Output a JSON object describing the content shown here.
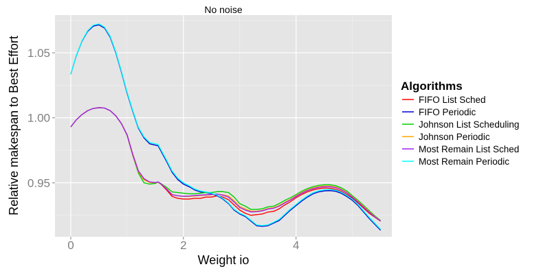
{
  "chart_data": {
    "type": "line",
    "title": "No noise",
    "xlabel": "Weight io",
    "ylabel": "Relative makespan to Best Effort",
    "xlim": [
      -0.28,
      5.7
    ],
    "ylim": [
      0.9085,
      1.079
    ],
    "x_ticks": [
      0,
      2,
      4
    ],
    "x_tick_labels": [
      "0",
      "2",
      "4"
    ],
    "y_ticks": [
      0.95,
      1.0,
      1.05
    ],
    "y_tick_labels": [
      "0.95",
      "1.00",
      "1.05"
    ],
    "grid": true,
    "legend": {
      "title": "Algorithms",
      "position": "right"
    },
    "series": [
      {
        "name": "FIFO List Sched",
        "color": "#ff0000",
        "x": [
          0,
          0.1,
          0.2,
          0.3,
          0.4,
          0.5,
          0.6,
          0.7,
          0.8,
          0.9,
          1.0,
          1.1,
          1.2,
          1.3,
          1.4,
          1.5,
          1.55,
          1.6,
          1.7,
          1.8,
          1.9,
          2.0,
          2.1,
          2.2,
          2.3,
          2.4,
          2.5,
          2.6,
          2.7,
          2.8,
          2.9,
          3.0,
          3.1,
          3.2,
          3.3,
          3.4,
          3.5,
          3.6,
          3.7,
          3.8,
          3.9,
          4.0,
          4.1,
          4.2,
          4.3,
          4.4,
          4.5,
          4.6,
          4.7,
          4.8,
          4.9,
          5.0,
          5.1,
          5.2,
          5.3,
          5.4,
          5.5
        ],
        "y": [
          0.993,
          0.9985,
          1.0025,
          1.0055,
          1.0072,
          1.0078,
          1.0075,
          1.0055,
          1.0015,
          0.9955,
          0.987,
          0.972,
          0.959,
          0.953,
          0.9505,
          0.95,
          0.9505,
          0.949,
          0.9445,
          0.9395,
          0.938,
          0.9375,
          0.9375,
          0.938,
          0.938,
          0.939,
          0.939,
          0.94,
          0.939,
          0.937,
          0.933,
          0.929,
          0.9265,
          0.925,
          0.9255,
          0.926,
          0.9275,
          0.928,
          0.93,
          0.933,
          0.9355,
          0.9385,
          0.941,
          0.943,
          0.9445,
          0.9455,
          0.946,
          0.9458,
          0.945,
          0.9435,
          0.941,
          0.938,
          0.9345,
          0.9305,
          0.9265,
          0.9235,
          0.9205
        ]
      },
      {
        "name": "FIFO Periodic",
        "color": "#0000cd",
        "x": [
          0,
          0.1,
          0.2,
          0.3,
          0.4,
          0.5,
          0.6,
          0.7,
          0.8,
          0.9,
          1.0,
          1.1,
          1.2,
          1.3,
          1.4,
          1.5,
          1.55,
          1.6,
          1.7,
          1.8,
          1.9,
          2.0,
          2.1,
          2.2,
          2.3,
          2.4,
          2.5,
          2.6,
          2.7,
          2.8,
          2.9,
          3.0,
          3.1,
          3.2,
          3.3,
          3.4,
          3.5,
          3.6,
          3.7,
          3.8,
          3.9,
          4.0,
          4.1,
          4.2,
          4.3,
          4.4,
          4.5,
          4.6,
          4.7,
          4.8,
          4.9,
          5.0,
          5.1,
          5.2,
          5.3,
          5.4,
          5.5
        ],
        "y": [
          1.0335,
          1.048,
          1.059,
          1.0665,
          1.0705,
          1.0715,
          1.069,
          1.062,
          1.05,
          1.035,
          1.019,
          1.005,
          0.992,
          0.9845,
          0.98,
          0.979,
          0.9785,
          0.9745,
          0.9665,
          0.958,
          0.9525,
          0.949,
          0.947,
          0.9445,
          0.943,
          0.9425,
          0.9415,
          0.94,
          0.9375,
          0.934,
          0.929,
          0.926,
          0.924,
          0.9205,
          0.917,
          0.9165,
          0.917,
          0.919,
          0.921,
          0.925,
          0.929,
          0.9325,
          0.936,
          0.939,
          0.9415,
          0.943,
          0.9438,
          0.944,
          0.9435,
          0.942,
          0.9395,
          0.9365,
          0.9325,
          0.9275,
          0.9225,
          0.918,
          0.9135
        ]
      },
      {
        "name": "Johnson List Scheduling",
        "color": "#00cd00",
        "x": [
          0,
          0.1,
          0.2,
          0.3,
          0.4,
          0.5,
          0.6,
          0.7,
          0.8,
          0.9,
          1.0,
          1.1,
          1.2,
          1.3,
          1.4,
          1.5,
          1.55,
          1.6,
          1.7,
          1.8,
          1.9,
          2.0,
          2.1,
          2.2,
          2.3,
          2.4,
          2.5,
          2.6,
          2.7,
          2.8,
          2.9,
          3.0,
          3.1,
          3.2,
          3.3,
          3.4,
          3.5,
          3.6,
          3.7,
          3.8,
          3.9,
          4.0,
          4.1,
          4.2,
          4.3,
          4.4,
          4.5,
          4.6,
          4.7,
          4.8,
          4.9,
          5.0,
          5.1,
          5.2,
          5.3,
          5.4,
          5.5
        ],
        "y": [
          0.993,
          0.9985,
          1.0025,
          1.0055,
          1.0072,
          1.0078,
          1.0075,
          1.0055,
          1.0015,
          0.9955,
          0.9865,
          0.971,
          0.9575,
          0.95,
          0.949,
          0.9495,
          0.9505,
          0.9495,
          0.9465,
          0.943,
          0.9425,
          0.942,
          0.9415,
          0.9415,
          0.942,
          0.9425,
          0.9425,
          0.9432,
          0.9432,
          0.9425,
          0.939,
          0.934,
          0.932,
          0.9295,
          0.9295,
          0.93,
          0.9315,
          0.932,
          0.934,
          0.9365,
          0.9385,
          0.941,
          0.9435,
          0.9455,
          0.947,
          0.948,
          0.9485,
          0.9485,
          0.9478,
          0.9462,
          0.9437,
          0.94,
          0.9365,
          0.9325,
          0.9285,
          0.9245,
          0.921
        ]
      },
      {
        "name": "Johnson Periodic",
        "color": "#ffa500",
        "x": [
          0,
          0.1,
          0.2,
          0.3,
          0.4,
          0.5,
          0.6,
          0.7,
          0.8,
          0.9,
          1.0,
          1.1,
          1.2,
          1.3,
          1.4,
          1.5,
          1.55,
          1.6,
          1.7,
          1.8,
          1.9,
          2.0,
          2.1,
          2.2,
          2.3,
          2.4,
          2.5,
          2.6,
          2.7,
          2.8,
          2.9,
          3.0,
          3.1,
          3.2,
          3.3,
          3.4,
          3.5,
          3.6,
          3.7,
          3.8,
          3.9,
          4.0,
          4.1,
          4.2,
          4.3,
          4.4,
          4.5,
          4.6,
          4.7,
          4.8,
          4.9,
          5.0,
          5.1,
          5.2,
          5.3,
          5.4,
          5.5
        ],
        "y": [
          0.993,
          0.9985,
          1.0025,
          1.0055,
          1.0072,
          1.0078,
          1.0075,
          1.0055,
          1.0015,
          0.9955,
          0.9865,
          0.9712,
          0.9585,
          0.9522,
          0.9502,
          0.95,
          0.9505,
          0.9493,
          0.9455,
          0.941,
          0.94,
          0.9395,
          0.9395,
          0.9398,
          0.9402,
          0.9405,
          0.9408,
          0.9412,
          0.9408,
          0.9398,
          0.9362,
          0.9318,
          0.9298,
          0.9282,
          0.9282,
          0.9288,
          0.9302,
          0.9308,
          0.9325,
          0.935,
          0.9372,
          0.94,
          0.9425,
          0.9445,
          0.946,
          0.947,
          0.9475,
          0.9475,
          0.9468,
          0.9452,
          0.9427,
          0.9392,
          0.9357,
          0.9317,
          0.9277,
          0.924,
          0.9208
        ]
      },
      {
        "name": "Most Remain List Sched",
        "color": "#a020f0",
        "x": [
          0,
          0.1,
          0.2,
          0.3,
          0.4,
          0.5,
          0.6,
          0.7,
          0.8,
          0.9,
          1.0,
          1.1,
          1.2,
          1.3,
          1.4,
          1.5,
          1.55,
          1.6,
          1.7,
          1.8,
          1.9,
          2.0,
          2.1,
          2.2,
          2.3,
          2.4,
          2.5,
          2.6,
          2.7,
          2.8,
          2.9,
          3.0,
          3.1,
          3.2,
          3.3,
          3.4,
          3.5,
          3.6,
          3.7,
          3.8,
          3.9,
          4.0,
          4.1,
          4.2,
          4.3,
          4.4,
          4.5,
          4.6,
          4.7,
          4.8,
          4.9,
          5.0,
          5.1,
          5.2,
          5.3,
          5.4,
          5.5
        ],
        "y": [
          0.993,
          0.9985,
          1.0025,
          1.0055,
          1.0072,
          1.0078,
          1.0075,
          1.0055,
          1.0015,
          0.9955,
          0.9868,
          0.9718,
          0.9592,
          0.9532,
          0.9507,
          0.9502,
          0.9507,
          0.9492,
          0.9452,
          0.9408,
          0.94,
          0.9397,
          0.9398,
          0.9402,
          0.9405,
          0.9408,
          0.941,
          0.9413,
          0.9405,
          0.939,
          0.9352,
          0.931,
          0.929,
          0.9276,
          0.9278,
          0.9284,
          0.9298,
          0.9304,
          0.932,
          0.9345,
          0.9368,
          0.9395,
          0.942,
          0.944,
          0.9455,
          0.9465,
          0.947,
          0.947,
          0.9463,
          0.9447,
          0.9422,
          0.9388,
          0.9352,
          0.9312,
          0.9272,
          0.9237,
          0.9206
        ]
      },
      {
        "name": "Most Remain Periodic",
        "color": "#00ffff",
        "x": [
          0,
          0.1,
          0.2,
          0.3,
          0.4,
          0.5,
          0.6,
          0.7,
          0.8,
          0.9,
          1.0,
          1.1,
          1.2,
          1.3,
          1.4,
          1.5,
          1.55,
          1.6,
          1.7,
          1.8,
          1.9,
          2.0,
          2.1,
          2.2,
          2.3,
          2.4,
          2.5,
          2.6,
          2.7,
          2.8,
          2.9,
          3.0,
          3.1,
          3.2,
          3.3,
          3.4,
          3.5,
          3.6,
          3.7,
          3.8,
          3.9,
          4.0,
          4.1,
          4.2,
          4.3,
          4.4,
          4.5,
          4.6,
          4.7,
          4.8,
          4.9,
          5.0,
          5.1,
          5.2,
          5.3,
          5.4,
          5.5
        ],
        "y": [
          1.0335,
          1.0482,
          1.0593,
          1.067,
          1.0712,
          1.0722,
          1.0697,
          1.0627,
          1.0507,
          1.0357,
          1.0197,
          1.0057,
          0.9927,
          0.9853,
          0.981,
          0.98,
          0.9795,
          0.9755,
          0.9675,
          0.959,
          0.9535,
          0.95,
          0.9478,
          0.9452,
          0.9437,
          0.943,
          0.942,
          0.9405,
          0.938,
          0.9345,
          0.9296,
          0.9266,
          0.9246,
          0.9211,
          0.9176,
          0.9171,
          0.9176,
          0.9196,
          0.9218,
          0.9258,
          0.9298,
          0.9333,
          0.9368,
          0.9398,
          0.9423,
          0.9438,
          0.9446,
          0.9448,
          0.9443,
          0.9428,
          0.9403,
          0.9373,
          0.9333,
          0.9283,
          0.9233,
          0.9188,
          0.9142
        ]
      }
    ]
  }
}
